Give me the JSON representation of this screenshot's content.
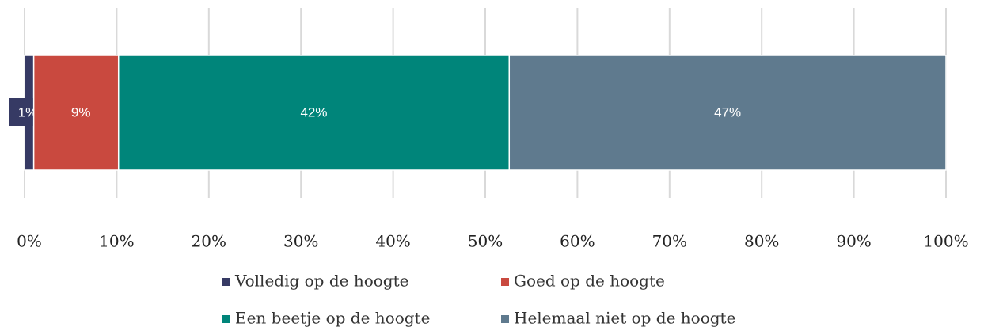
{
  "chart_data": {
    "type": "stacked_barh",
    "series": [
      {
        "name": "Volledig op de hoogte",
        "color": "#363a64",
        "values": [
          1.0
        ],
        "value_labels": [
          "1%"
        ]
      },
      {
        "name": "Goed op de hoogte",
        "color": "#c9493f",
        "values": [
          9.2
        ],
        "value_labels": [
          "9%"
        ]
      },
      {
        "name": "Een beetje op de hoogte",
        "color": "#00857a",
        "values": [
          42.4
        ],
        "value_labels": [
          "42%"
        ]
      },
      {
        "name": "Helemaal niet op de hoogte",
        "color": "#5f7a8e",
        "values": [
          47.4
        ],
        "value_labels": [
          "47%"
        ]
      }
    ],
    "xlim": [
      0,
      100
    ],
    "xticks": [
      {
        "value": 0,
        "label": "0%"
      },
      {
        "value": 10,
        "label": "10%"
      },
      {
        "value": 20,
        "label": "20%"
      },
      {
        "value": 30,
        "label": "30%"
      },
      {
        "value": 40,
        "label": "40%"
      },
      {
        "value": 50,
        "label": "50%"
      },
      {
        "value": 60,
        "label": "60%"
      },
      {
        "value": 70,
        "label": "70%"
      },
      {
        "value": 80,
        "label": "80%"
      },
      {
        "value": 90,
        "label": "90%"
      },
      {
        "value": 100,
        "label": "100%"
      }
    ],
    "grid": true,
    "legend": "bottom"
  }
}
